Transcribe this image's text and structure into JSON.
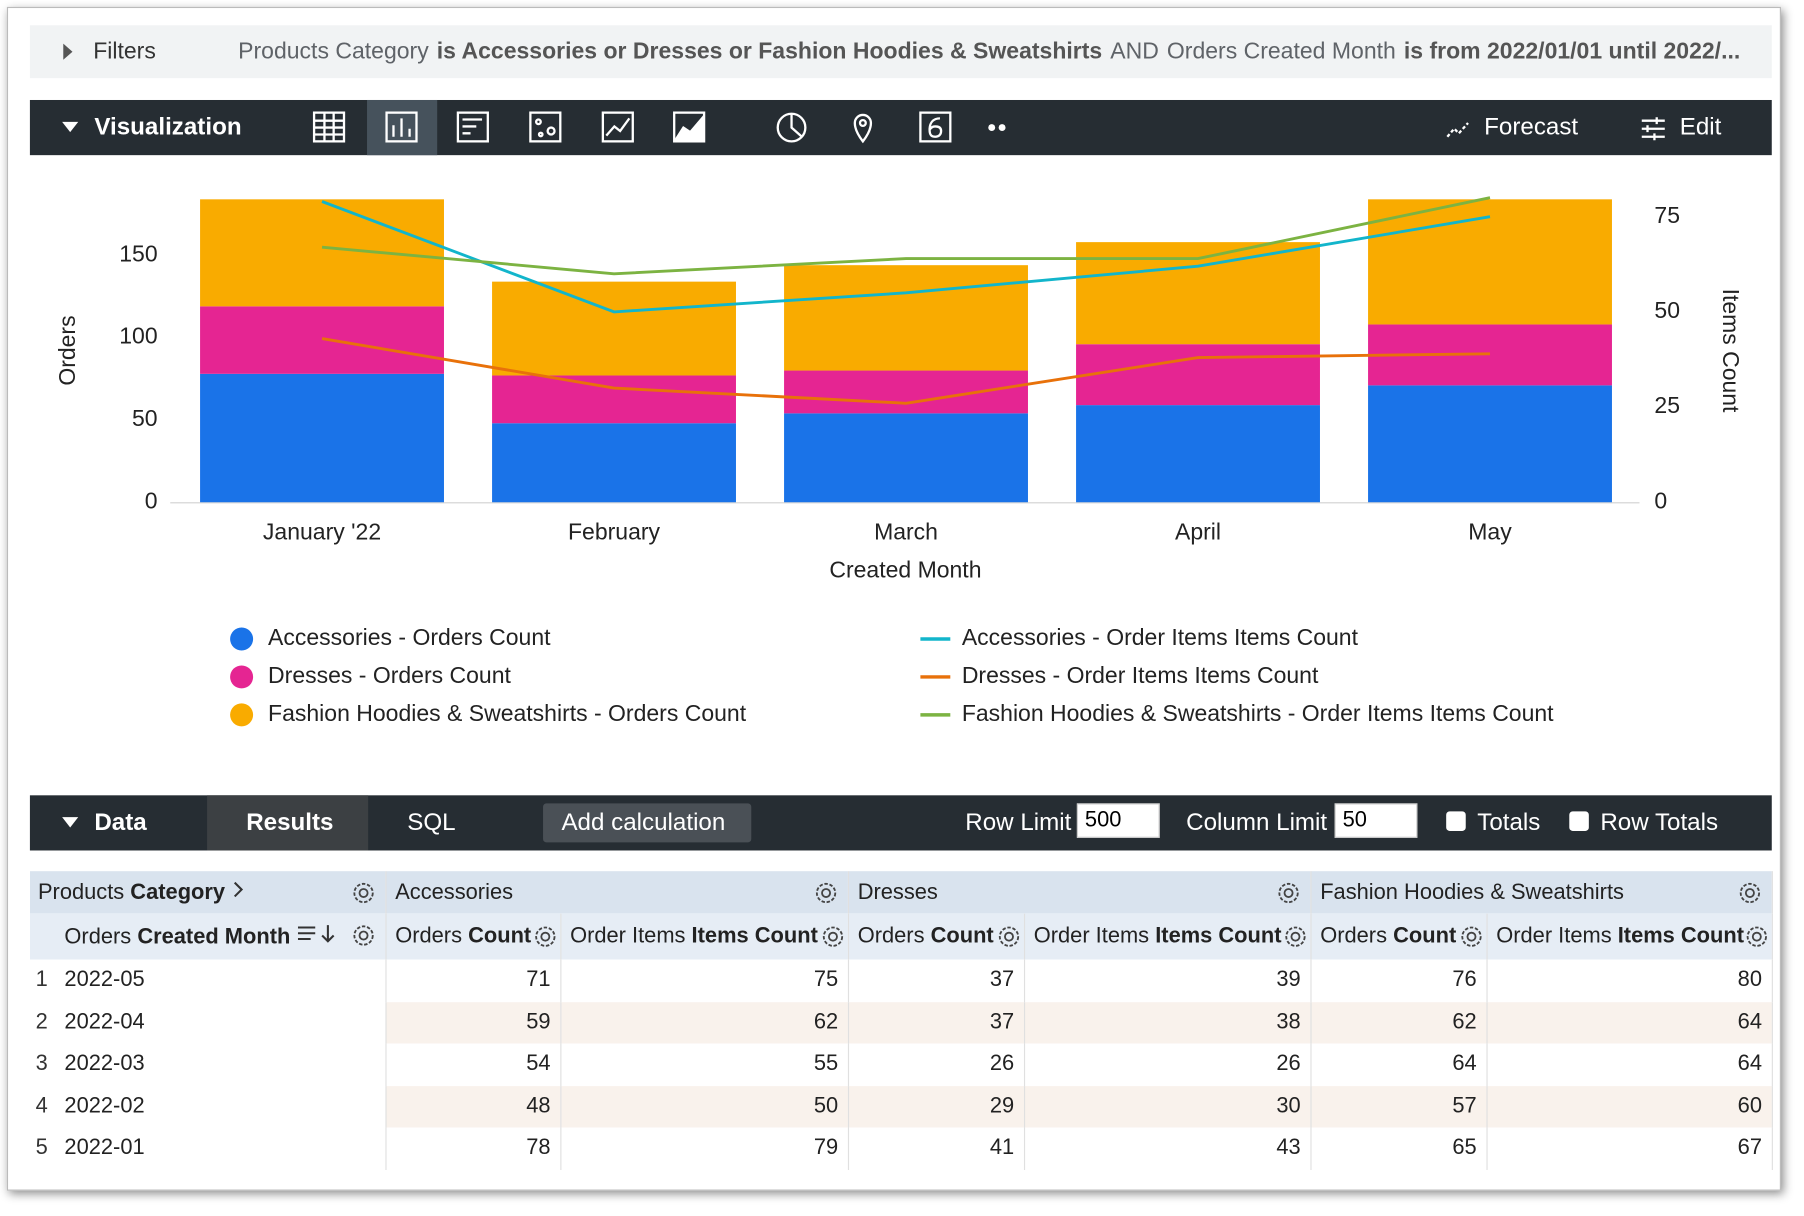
{
  "filters": {
    "label": "Filters",
    "segments": [
      {
        "text": "Products Category",
        "bold": false
      },
      {
        "text": "is Accessories or Dresses or Fashion Hoodies & Sweatshirts",
        "bold": true
      },
      {
        "text": "AND",
        "bold": false
      },
      {
        "text": "Orders Created Month",
        "bold": false
      },
      {
        "text": "is from 2022/01/01 until 2022/...",
        "bold": true
      }
    ]
  },
  "toolbar": {
    "title": "Visualization",
    "forecast": "Forecast",
    "edit": "Edit"
  },
  "chart_data": {
    "type": "bar",
    "stacked": true,
    "categories": [
      "January '22",
      "February",
      "March",
      "April",
      "May"
    ],
    "x_label": "Created Month",
    "y_label": "Orders",
    "y2_label": "Items Count",
    "ylim": [
      0,
      185
    ],
    "yticks": [
      0,
      50,
      100,
      150
    ],
    "y2lim": [
      0,
      80
    ],
    "y2ticks": [
      0,
      25,
      50,
      75
    ],
    "series": [
      {
        "name": "Accessories - Orders Count",
        "color": "#1a73e8",
        "type": "bar",
        "values": [
          78,
          48,
          54,
          59,
          71
        ]
      },
      {
        "name": "Dresses - Orders Count",
        "color": "#e52592",
        "type": "bar",
        "values": [
          41,
          29,
          26,
          37,
          37
        ]
      },
      {
        "name": "Fashion Hoodies & Sweatshirts - Orders Count",
        "color": "#f9ab00",
        "type": "bar",
        "values": [
          65,
          57,
          64,
          62,
          76
        ]
      },
      {
        "name": "Accessories - Order Items Items Count",
        "color": "#12b5cb",
        "type": "line",
        "axis": "y2",
        "values": [
          79,
          50,
          55,
          62,
          75
        ]
      },
      {
        "name": "Dresses - Order Items Items Count",
        "color": "#e8710a",
        "type": "line",
        "axis": "y2",
        "values": [
          43,
          30,
          26,
          38,
          39
        ]
      },
      {
        "name": "Fashion Hoodies & Sweatshirts - Order Items Items Count",
        "color": "#7cb342",
        "type": "line",
        "axis": "y2",
        "values": [
          67,
          60,
          64,
          64,
          80
        ]
      }
    ]
  },
  "data_panel": {
    "title": "Data",
    "tabs": [
      "Results",
      "SQL"
    ],
    "add_calculation": "Add calculation",
    "row_limit_label": "Row Limit",
    "row_limit": 500,
    "column_limit_label": "Column Limit",
    "column_limit": 50,
    "totals": "Totals",
    "row_totals": "Row Totals"
  },
  "table": {
    "pivot_label": {
      "view": "Products",
      "field": "Category"
    },
    "pivots": [
      "Accessories",
      "Dresses",
      "Fashion Hoodies & Sweatshirts"
    ],
    "dimension": {
      "view": "Orders",
      "field": "Created Month"
    },
    "measures": [
      {
        "view": "Orders",
        "field": "Count"
      },
      {
        "view": "Order Items",
        "field": "Items Count"
      }
    ],
    "rows": [
      [
        1,
        "2022-05",
        71,
        75,
        37,
        39,
        76,
        80
      ],
      [
        2,
        "2022-04",
        59,
        62,
        37,
        38,
        62,
        64
      ],
      [
        3,
        "2022-03",
        54,
        55,
        26,
        26,
        64,
        64
      ],
      [
        4,
        "2022-02",
        48,
        50,
        29,
        30,
        57,
        60
      ],
      [
        5,
        "2022-01",
        78,
        79,
        41,
        43,
        65,
        67
      ]
    ]
  }
}
